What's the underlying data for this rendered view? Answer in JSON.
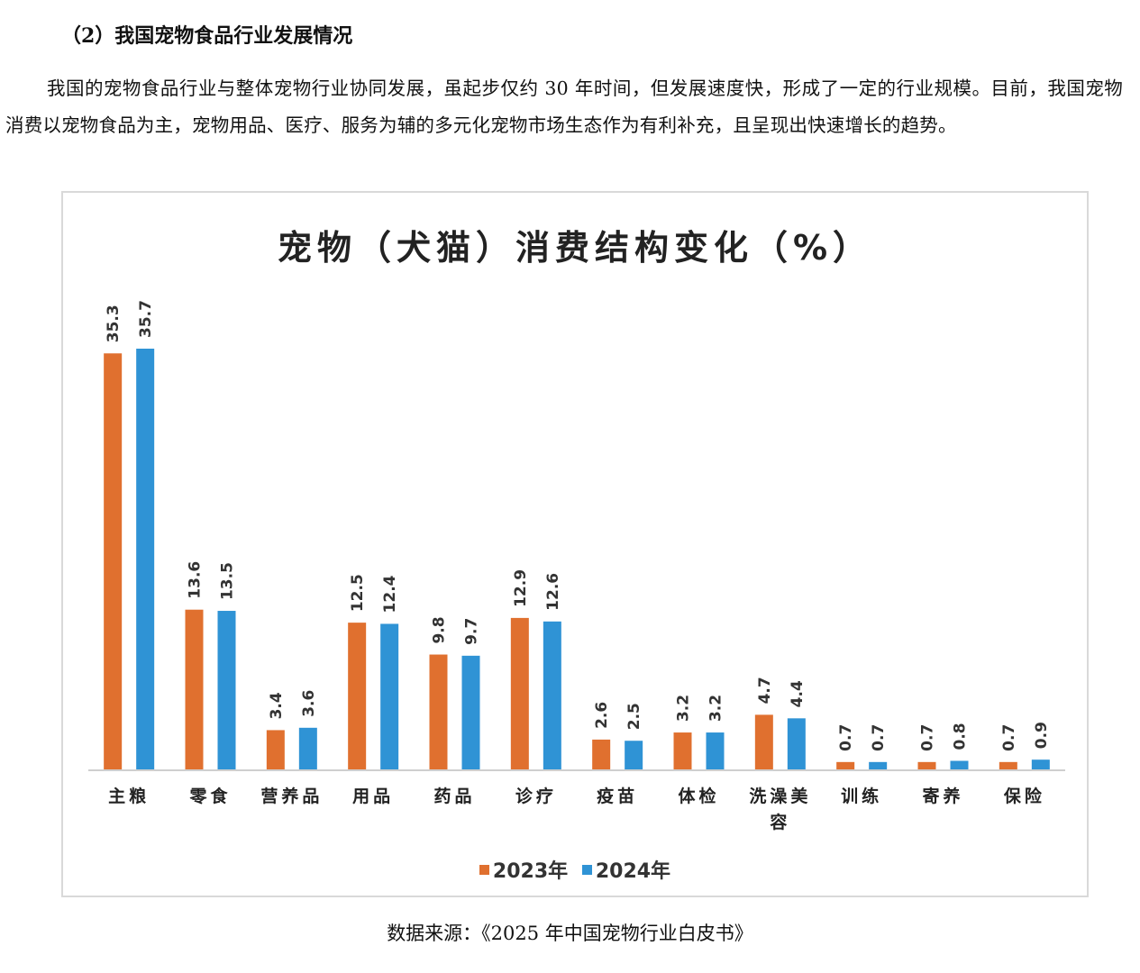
{
  "section_heading": "（2）我国宠物食品行业发展情况",
  "paragraph": "我国的宠物食品行业与整体宠物行业协同发展，虽起步仅约 30 年时间，但发展速度快，形成了一定的行业规模。目前，我国宠物消费以宠物食品为主，宠物用品、医疗、服务为辅的多元化宠物市场生态作为有利补充，且呈现出快速增长的趋势。",
  "source": "数据来源：《2025 年中国宠物行业白皮书》",
  "colors": {
    "series_2023": "#E0702F",
    "series_2024": "#2F93D5"
  },
  "chart_data": {
    "type": "bar",
    "title": "宠物（犬猫）消费结构变化（%）",
    "xlabel": "",
    "ylabel": "",
    "ylim": [
      0,
      37
    ],
    "grid": false,
    "legend_position": "bottom",
    "categories": [
      "主粮",
      "零食",
      "营养品",
      "用品",
      "药品",
      "诊疗",
      "疫苗",
      "体检",
      "洗澡美容",
      "训练",
      "寄养",
      "保险"
    ],
    "series": [
      {
        "name": "2023年",
        "values": [
          35.3,
          13.6,
          3.4,
          12.5,
          9.8,
          12.9,
          2.6,
          3.2,
          4.7,
          0.7,
          0.7,
          0.7
        ]
      },
      {
        "name": "2024年",
        "values": [
          35.7,
          13.5,
          3.6,
          12.4,
          9.7,
          12.6,
          2.5,
          3.2,
          4.4,
          0.7,
          0.8,
          0.9
        ]
      }
    ]
  }
}
